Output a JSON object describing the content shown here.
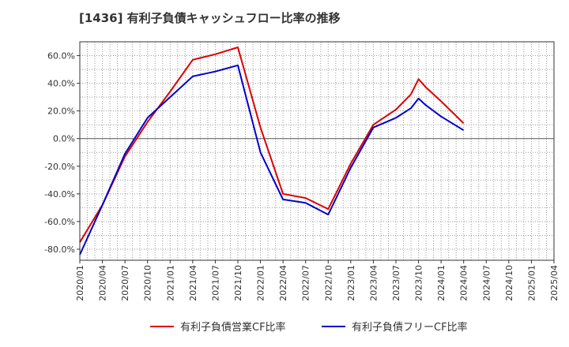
{
  "chart_data": {
    "type": "line",
    "title": "[1436]  有利子負債キャッシュフロー比率の推移",
    "xlabel": "",
    "ylabel": "",
    "grid": true,
    "legend_position": "bottom",
    "ylim": [
      -88,
      70
    ],
    "x_ticks": [
      "2020/01",
      "2020/04",
      "2020/07",
      "2020/10",
      "2021/01",
      "2021/04",
      "2021/07",
      "2021/10",
      "2022/01",
      "2022/04",
      "2022/07",
      "2022/10",
      "2023/01",
      "2023/04",
      "2023/07",
      "2023/10",
      "2024/01",
      "2024/04",
      "2024/07",
      "2024/10",
      "2025/01",
      "2025/04"
    ],
    "y_ticks": [
      {
        "value": 60,
        "label": "60.0%"
      },
      {
        "value": 40,
        "label": "40.0%"
      },
      {
        "value": 20,
        "label": "20.0%"
      },
      {
        "value": 0,
        "label": "0.0%"
      },
      {
        "value": -20,
        "label": "-20.0%"
      },
      {
        "value": -40,
        "label": "-40.0%"
      },
      {
        "value": -60,
        "label": "-60.0%"
      },
      {
        "value": -80,
        "label": "-80.0%"
      }
    ],
    "series": [
      {
        "name": "有利子負債営業CF比率",
        "color": "#dd0000",
        "points": [
          [
            "2020/01",
            -75
          ],
          [
            "2020/04",
            -48
          ],
          [
            "2020/07",
            -13
          ],
          [
            "2020/10",
            12
          ],
          [
            "2021/01",
            34
          ],
          [
            "2021/04",
            57
          ],
          [
            "2021/07",
            61
          ],
          [
            "2021/10",
            66
          ],
          [
            "2022/01",
            8
          ],
          [
            "2022/04",
            -40
          ],
          [
            "2022/07",
            -43
          ],
          [
            "2022/10",
            -51
          ],
          [
            "2023/01",
            -18
          ],
          [
            "2023/04",
            10
          ],
          [
            "2023/07",
            21
          ],
          [
            "2023/09",
            32
          ],
          [
            "2023/10",
            43
          ],
          [
            "2023/11",
            37
          ],
          [
            "2024/01",
            27
          ],
          [
            "2024/04",
            11
          ]
        ]
      },
      {
        "name": "有利子負債フリーCF比率",
        "color": "#0000cc",
        "points": [
          [
            "2020/01",
            -84
          ],
          [
            "2020/04",
            -48
          ],
          [
            "2020/07",
            -11
          ],
          [
            "2020/10",
            15
          ],
          [
            "2021/01",
            30
          ],
          [
            "2021/04",
            45
          ],
          [
            "2021/07",
            48.5
          ],
          [
            "2021/10",
            53
          ],
          [
            "2022/01",
            -10
          ],
          [
            "2022/04",
            -44
          ],
          [
            "2022/07",
            -46.5
          ],
          [
            "2022/10",
            -55
          ],
          [
            "2023/01",
            -21
          ],
          [
            "2023/04",
            8
          ],
          [
            "2023/07",
            15
          ],
          [
            "2023/09",
            22
          ],
          [
            "2023/10",
            29
          ],
          [
            "2023/11",
            24
          ],
          [
            "2024/01",
            16
          ],
          [
            "2024/04",
            6
          ]
        ]
      }
    ]
  }
}
